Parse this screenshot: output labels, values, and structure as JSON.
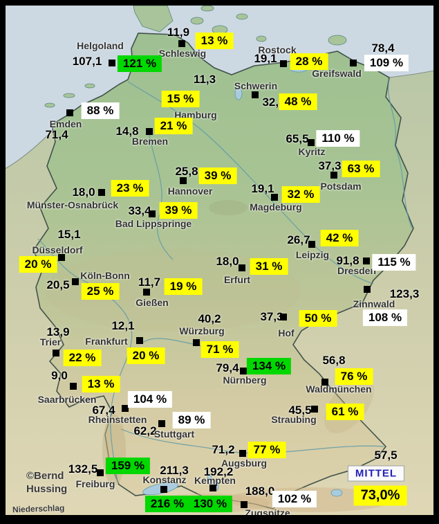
{
  "map": {
    "credit_line1": "©Bernd",
    "credit_line2": "Hussing",
    "bottom_label": "Niederschlag",
    "mittel": {
      "label": "MITTEL",
      "value": "73,0%"
    }
  },
  "colors": {
    "yellow": "#ffff00",
    "green": "#00d800",
    "white": "#ffffff",
    "sea": "#ccd8e2",
    "mittel_text": "#2121b8"
  },
  "stations": [
    {
      "name": "Helgoland",
      "value": "107,1",
      "percent": "121 %",
      "box": "green",
      "pos": {
        "name": [
          145,
          66
        ],
        "value": [
          126,
          89
        ],
        "marker": [
          162,
          91
        ],
        "pct": [
          202,
          92
        ]
      }
    },
    {
      "name": "Schleswig",
      "value": "11,9",
      "percent": "13 %",
      "box": "yellow",
      "pos": {
        "name": [
          264,
          77
        ],
        "value": [
          258,
          47
        ],
        "marker": [
          263,
          63
        ],
        "pct": [
          310,
          59
        ]
      }
    },
    {
      "name": "Rostock",
      "value": "19,1",
      "percent": "28 %",
      "box": "yellow",
      "pos": {
        "name": [
          401,
          72
        ],
        "value": [
          384,
          85
        ],
        "marker": [
          410,
          92
        ],
        "pct": [
          447,
          89
        ]
      }
    },
    {
      "name": "Greifswald",
      "value": "78,4",
      "percent": "109 %",
      "box": "white",
      "pos": {
        "name": [
          487,
          106
        ],
        "value": [
          554,
          70
        ],
        "marker": [
          511,
          91
        ],
        "pct": [
          559,
          91
        ]
      }
    },
    {
      "name": "Schwerin",
      "value": "32,4",
      "percent": "48 %",
      "box": "yellow",
      "pos": {
        "name": [
          370,
          124
        ],
        "value": [
          396,
          148
        ],
        "marker": [
          369,
          137
        ],
        "pct": [
          431,
          147
        ]
      }
    },
    {
      "name": "Hamburg",
      "value": "11,3",
      "percent": "15 %",
      "box": "yellow",
      "pos": {
        "name": [
          283,
          166
        ],
        "value": [
          296,
          115
        ],
        "marker": null,
        "pct": [
          261,
          143
        ]
      }
    },
    {
      "name": "Bremen",
      "value": "14,8",
      "percent": "21 %",
      "box": "yellow",
      "pos": {
        "name": [
          217,
          204
        ],
        "value": [
          184,
          190
        ],
        "marker": [
          216,
          190
        ],
        "pct": [
          251,
          182
        ]
      }
    },
    {
      "name": "Emden",
      "value": "71,4",
      "percent": "88 %",
      "box": "white",
      "pos": {
        "name": [
          95,
          179
        ],
        "value": [
          82,
          195
        ],
        "marker": [
          101,
          163
        ],
        "pct": [
          145,
          160
        ]
      }
    },
    {
      "name": "Kyritz",
      "value": "65,5",
      "percent": "110 %",
      "box": "white",
      "pos": {
        "name": [
          451,
          219
        ],
        "value": [
          430,
          201
        ],
        "marker": [
          450,
          206
        ],
        "pct": [
          489,
          200
        ]
      }
    },
    {
      "name": "Potsdam",
      "value": "37,3",
      "percent": "63 %",
      "box": "yellow",
      "pos": {
        "name": [
          493,
          269
        ],
        "value": [
          477,
          240
        ],
        "marker": [
          483,
          253
        ],
        "pct": [
          522,
          244
        ]
      }
    },
    {
      "name": "Magdeburg",
      "value": "19,1",
      "percent": "32 %",
      "box": "yellow",
      "pos": {
        "name": [
          399,
          299
        ],
        "value": [
          380,
          273
        ],
        "marker": [
          397,
          285
        ],
        "pct": [
          435,
          281
        ]
      }
    },
    {
      "name": "Hannover",
      "value": "25,8",
      "percent": "39 %",
      "box": "yellow",
      "pos": {
        "name": [
          275,
          276
        ],
        "value": [
          270,
          248
        ],
        "marker": [
          265,
          261
        ],
        "pct": [
          315,
          254
        ]
      }
    },
    {
      "name": "Münster-Osnabrück",
      "value": "18,0",
      "percent": "23 %",
      "box": "yellow",
      "pos": {
        "name": [
          105,
          296
        ],
        "value": [
          121,
          278
        ],
        "marker": [
          147,
          278
        ],
        "pct": [
          188,
          272
        ]
      }
    },
    {
      "name": "Bad Lippspringe",
      "value": "33,4",
      "percent": "39 %",
      "box": "yellow",
      "pos": {
        "name": [
          222,
          323
        ],
        "value": [
          202,
          305
        ],
        "marker": [
          220,
          309
        ],
        "pct": [
          258,
          304
        ]
      }
    },
    {
      "name": "Düsseldorf",
      "value": "15,1",
      "percent": "20 %",
      "box": "yellow",
      "pos": {
        "name": [
          83,
          361
        ],
        "value": [
          100,
          339
        ],
        "marker": [
          89,
          372
        ],
        "pct": [
          55,
          382
        ]
      }
    },
    {
      "name": "Köln-Bonn",
      "value": "20,5",
      "percent": "25 %",
      "box": "yellow",
      "pos": {
        "name": [
          152,
          398
        ],
        "value": [
          84,
          412
        ],
        "marker": [
          109,
          407
        ],
        "pct": [
          145,
          421
        ]
      }
    },
    {
      "name": "Gießen",
      "value": "11,7",
      "percent": "19 %",
      "box": "yellow",
      "pos": {
        "name": [
          220,
          437
        ],
        "value": [
          216,
          408
        ],
        "marker": [
          212,
          422
        ],
        "pct": [
          265,
          414
        ]
      }
    },
    {
      "name": "Erfurt",
      "value": "18,0",
      "percent": "31 %",
      "box": "yellow",
      "pos": {
        "name": [
          343,
          404
        ],
        "value": [
          329,
          378
        ],
        "marker": [
          350,
          387
        ],
        "pct": [
          389,
          385
        ]
      }
    },
    {
      "name": "Leipzig",
      "value": "26,7",
      "percent": "42 %",
      "box": "yellow",
      "pos": {
        "name": [
          452,
          368
        ],
        "value": [
          432,
          347
        ],
        "marker": [
          451,
          353
        ],
        "pct": [
          491,
          344
        ]
      }
    },
    {
      "name": "Dresden",
      "value": "91,8",
      "percent": "115 %",
      "box": "white",
      "pos": {
        "name": [
          516,
          391
        ],
        "value": [
          503,
          377
        ],
        "marker": [
          530,
          377
        ],
        "pct": [
          570,
          379
        ]
      }
    },
    {
      "name": "Zinnwald",
      "value": "123,3",
      "percent": "108 %",
      "box": "white",
      "pos": {
        "name": [
          541,
          439
        ],
        "value": [
          585,
          425
        ],
        "marker": [
          531,
          418
        ],
        "pct": [
          557,
          459
        ]
      }
    },
    {
      "name": "Trier",
      "value": "13,9",
      "percent": "22 %",
      "box": "yellow",
      "pos": {
        "name": [
          73,
          494
        ],
        "value": [
          84,
          480
        ],
        "marker": [
          81,
          510
        ],
        "pct": [
          119,
          517
        ]
      }
    },
    {
      "name": "Frankfurt",
      "value": "12,1",
      "percent": "20 %",
      "box": "yellow",
      "pos": {
        "name": [
          154,
          493
        ],
        "value": [
          178,
          471
        ],
        "marker": [
          202,
          492
        ],
        "pct": [
          211,
          514
        ]
      }
    },
    {
      "name": "Würzburg",
      "value": "40,2",
      "percent": "71 %",
      "box": "yellow",
      "pos": {
        "name": [
          292,
          478
        ],
        "value": [
          303,
          461
        ],
        "marker": [
          284,
          495
        ],
        "pct": [
          318,
          505
        ]
      }
    },
    {
      "name": "Hof",
      "value": "37,3",
      "percent": "50 %",
      "box": "yellow",
      "pos": {
        "name": [
          414,
          481
        ],
        "value": [
          393,
          458
        ],
        "marker": [
          410,
          458
        ],
        "pct": [
          460,
          460
        ]
      }
    },
    {
      "name": "Saarbrücken",
      "value": "9,0",
      "percent": "13 %",
      "box": "yellow",
      "pos": {
        "name": [
          97,
          577
        ],
        "value": [
          86,
          543
        ],
        "marker": [
          106,
          558
        ],
        "pct": [
          146,
          555
        ]
      }
    },
    {
      "name": "Nürnberg",
      "value": "79,4",
      "percent": "134 %",
      "box": "green",
      "pos": {
        "name": [
          354,
          549
        ],
        "value": [
          329,
          532
        ],
        "marker": [
          352,
          536
        ],
        "pct": [
          389,
          529
        ]
      }
    },
    {
      "name": "Waldmünchen",
      "value": "56,8",
      "percent": "76 %",
      "box": "yellow",
      "pos": {
        "name": [
          490,
          562
        ],
        "value": [
          483,
          521
        ],
        "marker": [
          470,
          552
        ],
        "pct": [
          512,
          544
        ]
      }
    },
    {
      "name": "Straubing",
      "value": "45,5",
      "percent": "61 %",
      "box": "yellow",
      "pos": {
        "name": [
          425,
          606
        ],
        "value": [
          434,
          593
        ],
        "marker": [
          455,
          591
        ],
        "pct": [
          499,
          595
        ]
      }
    },
    {
      "name": "Rheinstetten",
      "value": "67,4",
      "percent": "104 %",
      "box": "white",
      "pos": {
        "name": [
          170,
          606
        ],
        "value": [
          150,
          593
        ],
        "marker": [
          181,
          590
        ],
        "pct": [
          217,
          577
        ]
      }
    },
    {
      "name": "Stuttgart",
      "value": "62,2",
      "percent": "89 %",
      "box": "white",
      "pos": {
        "name": [
          252,
          627
        ],
        "value": [
          210,
          623
        ],
        "marker": [
          234,
          612
        ],
        "pct": [
          277,
          607
        ]
      }
    },
    {
      "name": "Augsburg",
      "value": "71,2",
      "percent": "77 %",
      "box": "yellow",
      "pos": {
        "name": [
          353,
          669
        ],
        "value": [
          323,
          650
        ],
        "marker": [
          351,
          655
        ],
        "pct": [
          386,
          650
        ]
      }
    },
    {
      "name": "Freiburg",
      "value": "132,5",
      "percent": "159 %",
      "box": "green",
      "pos": {
        "name": [
          138,
          699
        ],
        "value": [
          120,
          678
        ],
        "marker": [
          145,
          683
        ],
        "pct": [
          185,
          673
        ]
      }
    },
    {
      "name": "Konstanz",
      "value": "211,3",
      "percent": "216 %",
      "box": "green",
      "pos": {
        "name": [
          238,
          693
        ],
        "value": [
          252,
          680
        ],
        "marker": [
          237,
          707
        ],
        "pct": [
          242,
          728
        ]
      }
    },
    {
      "name": "Kempten",
      "value": "192,2",
      "percent": "130 %",
      "box": "green",
      "pos": {
        "name": [
          311,
          694
        ],
        "value": [
          316,
          682
        ],
        "marker": [
          308,
          705
        ],
        "pct": [
          304,
          728
        ]
      }
    },
    {
      "name": "Zugspitze",
      "value": "188,0",
      "percent": "102 %",
      "box": "white",
      "pos": {
        "name": [
          387,
          741
        ],
        "value": [
          376,
          710
        ],
        "marker": [
          353,
          729
        ],
        "pct": [
          426,
          721
        ]
      }
    },
    {
      "name": null,
      "value": "57,5",
      "percent": null,
      "box": null,
      "pos": {
        "name": null,
        "value": [
          558,
          658
        ],
        "marker": null,
        "pct": null
      }
    }
  ]
}
